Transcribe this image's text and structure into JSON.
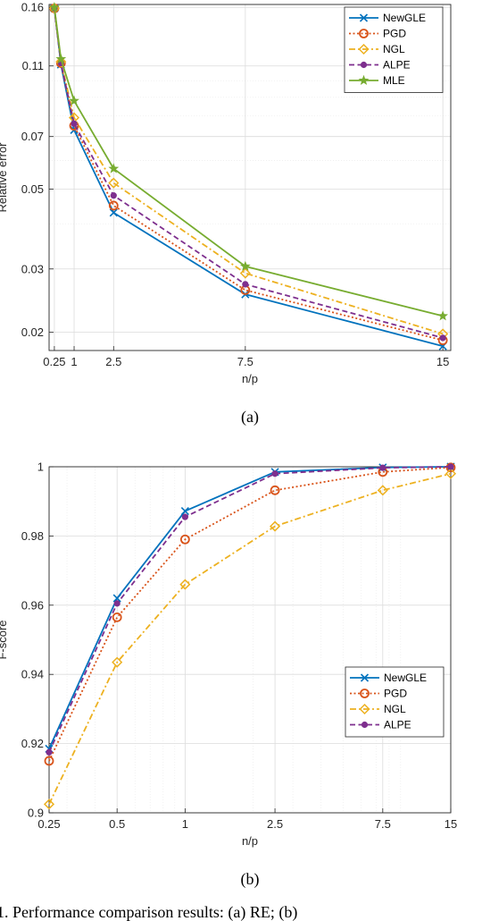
{
  "chart_data": [
    {
      "id": "a",
      "type": "line",
      "caption": "(a)",
      "xlabel": "n/p",
      "ylabel": "Relative error",
      "x_scale": "linear",
      "y_scale": "log",
      "xlim": [
        0.05,
        15.3
      ],
      "ylim": [
        0.0178,
        0.163
      ],
      "xticks": [
        0.25,
        1,
        2.5,
        7.5,
        15
      ],
      "xtick_labels": [
        "0.25",
        "1",
        "2.5",
        "7.5",
        "15"
      ],
      "yticks": [
        0.02,
        0.03,
        0.05,
        0.07,
        0.11,
        0.16
      ],
      "ytick_labels": [
        "0.02",
        "0.03",
        "0.05",
        "0.07",
        "0.11",
        "0.16"
      ],
      "grid": true,
      "legend_position": "top-right",
      "x": [
        0.25,
        0.5,
        1,
        2.5,
        7.5,
        15
      ],
      "series": [
        {
          "name": "NewGLE",
          "color": "#0072BD",
          "dash": "solid",
          "marker": "x",
          "values": [
            0.159,
            0.111,
            0.073,
            0.043,
            0.0255,
            0.0183
          ]
        },
        {
          "name": "PGD",
          "color": "#D95319",
          "dash": "dotted",
          "marker": "circle",
          "values": [
            0.159,
            0.112,
            0.075,
            0.045,
            0.0262,
            0.019
          ]
        },
        {
          "name": "NGL",
          "color": "#EDB120",
          "dash": "dashdot",
          "marker": "diamond",
          "values": [
            0.159,
            0.113,
            0.079,
            0.052,
            0.0292,
            0.0198
          ]
        },
        {
          "name": "ALPE",
          "color": "#7E2F8E",
          "dash": "dashed",
          "marker": "dot",
          "values": [
            0.159,
            0.112,
            0.076,
            0.048,
            0.0272,
            0.0193
          ]
        },
        {
          "name": "MLE",
          "color": "#77AC30",
          "dash": "solid",
          "marker": "star",
          "values": [
            0.16,
            0.115,
            0.088,
            0.057,
            0.0305,
            0.0222
          ]
        }
      ]
    },
    {
      "id": "b",
      "type": "line",
      "caption": "(b)",
      "xlabel": "n/p",
      "ylabel": "F-score",
      "x_scale": "log",
      "y_scale": "linear",
      "xlim": [
        0.25,
        15
      ],
      "ylim": [
        0.9,
        1.0
      ],
      "xticks": [
        0.25,
        0.5,
        1,
        2.5,
        7.5,
        15
      ],
      "xtick_labels": [
        "0.25",
        "0.5",
        "1",
        "2.5",
        "7.5",
        "15"
      ],
      "yticks": [
        0.9,
        0.92,
        0.94,
        0.96,
        0.98,
        1.0
      ],
      "ytick_labels": [
        "0.9",
        "0.92",
        "0.94",
        "0.96",
        "0.98",
        "1"
      ],
      "grid": true,
      "legend_position": "bottom-right",
      "x": [
        0.25,
        0.5,
        1,
        2.5,
        7.5,
        15
      ],
      "series": [
        {
          "name": "NewGLE",
          "color": "#0072BD",
          "dash": "solid",
          "marker": "x",
          "values": [
            0.9185,
            0.962,
            0.9872,
            0.9985,
            0.9998,
            1.0
          ]
        },
        {
          "name": "PGD",
          "color": "#D95319",
          "dash": "dotted",
          "marker": "circle",
          "values": [
            0.915,
            0.9565,
            0.979,
            0.9932,
            0.9985,
            0.9998
          ]
        },
        {
          "name": "NGL",
          "color": "#EDB120",
          "dash": "dashdot",
          "marker": "diamond",
          "values": [
            0.9025,
            0.9435,
            0.966,
            0.9828,
            0.9932,
            0.998
          ]
        },
        {
          "name": "ALPE",
          "color": "#7E2F8E",
          "dash": "dashed",
          "marker": "dot",
          "values": [
            0.9175,
            0.9605,
            0.9855,
            0.998,
            0.9997,
            1.0
          ]
        }
      ]
    }
  ],
  "bottom_text": "1.  Performance comparison results: (a) RE; (b)"
}
